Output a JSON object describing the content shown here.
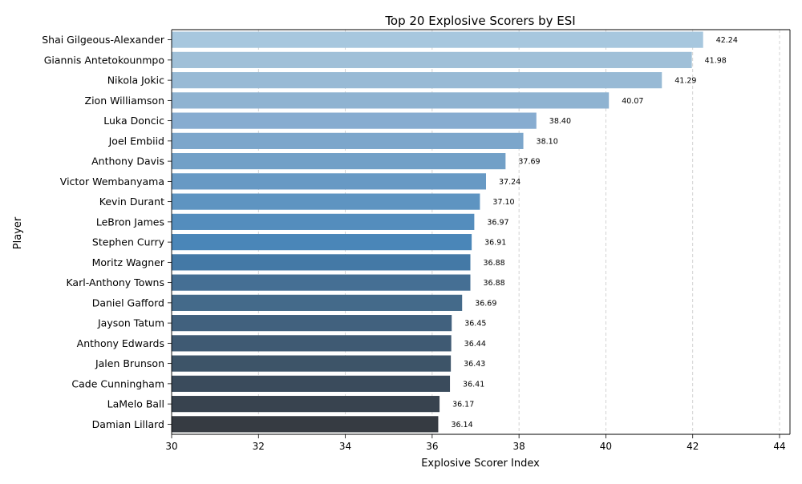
{
  "chart_data": {
    "type": "bar",
    "orientation": "horizontal",
    "title": "Top 20 Explosive Scorers by ESI",
    "xlabel": "Explosive Scorer Index",
    "ylabel": "Player",
    "xlim": [
      30,
      44.24
    ],
    "xticks": [
      30,
      32,
      34,
      36,
      38,
      40,
      42,
      44
    ],
    "grid": "x-dashed",
    "categories": [
      "Shai Gilgeous-Alexander",
      "Giannis Antetokounmpo",
      "Nikola Jokic",
      "Zion Williamson",
      "Luka Doncic",
      "Joel Embiid",
      "Anthony Davis",
      "Victor Wembanyama",
      "Kevin Durant",
      "LeBron James",
      "Stephen Curry",
      "Moritz Wagner",
      "Karl-Anthony Towns",
      "Daniel Gafford",
      "Jayson Tatum",
      "Anthony Edwards",
      "Jalen Brunson",
      "Cade Cunningham",
      "LaMelo Ball",
      "Damian Lillard"
    ],
    "values": [
      42.24,
      41.98,
      41.29,
      40.07,
      38.4,
      38.1,
      37.69,
      37.24,
      37.1,
      36.97,
      36.91,
      36.88,
      36.88,
      36.69,
      36.45,
      36.44,
      36.43,
      36.41,
      36.17,
      36.14
    ],
    "value_labels": [
      "42.24",
      "41.98",
      "41.29",
      "40.07",
      "38.40",
      "38.10",
      "37.69",
      "37.24",
      "37.10",
      "36.97",
      "36.91",
      "36.88",
      "36.88",
      "36.69",
      "36.45",
      "36.44",
      "36.43",
      "36.41",
      "36.17",
      "36.14"
    ],
    "colors": [
      "#a7c7de",
      "#a0c0d8",
      "#98bad5",
      "#8fb3d1",
      "#87acd0",
      "#7ca6cb",
      "#72a0c7",
      "#6799c4",
      "#5e94c1",
      "#548dbd",
      "#4a86b8",
      "#4479a6",
      "#456f94",
      "#446a8a",
      "#41617e",
      "#3f5a73",
      "#3d5468",
      "#3a4b5c",
      "#38434f",
      "#363b42"
    ]
  }
}
